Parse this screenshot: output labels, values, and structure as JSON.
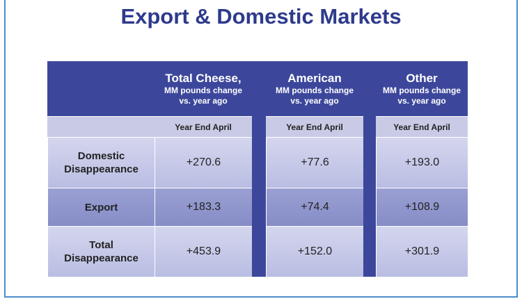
{
  "title": "Export & Domestic Markets",
  "table": {
    "columns": [
      {
        "name": "Total Cheese,",
        "unit": "MM pounds change vs. year ago",
        "period": "Year End April"
      },
      {
        "name": "American",
        "unit": "MM pounds change vs. year ago",
        "period": "Year End April"
      },
      {
        "name": "Other",
        "unit": "MM pounds change vs. year ago",
        "period": "Year End April"
      }
    ],
    "rows": [
      {
        "label": "Domestic Disappearance",
        "cells": [
          "+270.6",
          "+77.6",
          "+193.0"
        ]
      },
      {
        "label": "Export",
        "cells": [
          "+183.3",
          "+74.4",
          "+108.9"
        ]
      },
      {
        "label": "Total Disappearance",
        "cells": [
          "+453.9",
          "+152.0",
          "+301.9"
        ]
      }
    ]
  }
}
